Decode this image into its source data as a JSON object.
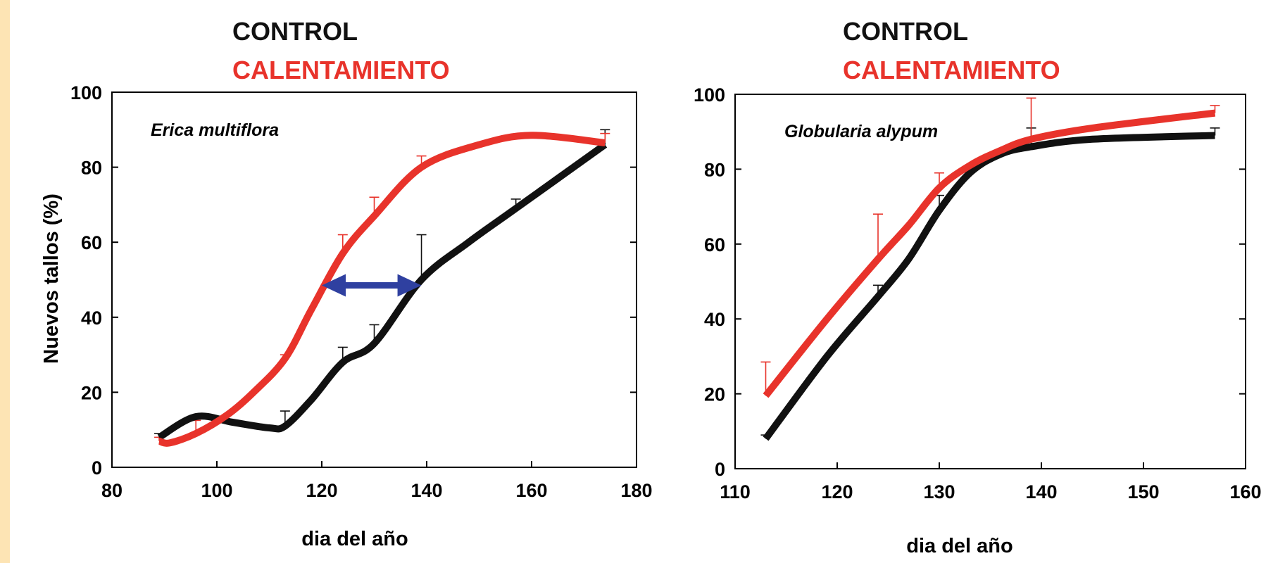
{
  "legend": {
    "control": "CONTROL",
    "warming": "CALENTAMIENTO"
  },
  "colors": {
    "control": "#111111",
    "warming": "#e8332b",
    "arrow": "#2f40a0",
    "background": "#fde4b4"
  },
  "chart_data": [
    {
      "type": "line",
      "species": "Erica multiflora",
      "xlabel": "dia del año",
      "ylabel": "Nuevos tallos (%)",
      "xlim": [
        80,
        180
      ],
      "ylim": [
        0,
        100
      ],
      "xticks": [
        80,
        100,
        120,
        140,
        160,
        180
      ],
      "yticks": [
        0,
        20,
        40,
        60,
        80,
        100
      ],
      "series": [
        {
          "name": "CONTROL",
          "color": "#111111",
          "x": [
            89,
            96,
            103,
            110,
            113,
            118,
            124,
            130,
            139,
            148,
            157,
            174
          ],
          "y": [
            8,
            13.5,
            12,
            10.5,
            11,
            18,
            28,
            33,
            50,
            60,
            69,
            86
          ],
          "error_x": [
            89,
            113,
            124,
            130,
            139,
            157,
            174
          ],
          "error_up": [
            1,
            4,
            4,
            5,
            12,
            2.5,
            4
          ]
        },
        {
          "name": "CALENTAMIENTO",
          "color": "#e8332b",
          "x": [
            89,
            91,
            96,
            102,
            107,
            113,
            118,
            124,
            130,
            139,
            150,
            160,
            174
          ],
          "y": [
            7,
            6.5,
            9,
            14,
            20,
            29,
            42,
            57,
            67,
            80,
            86,
            88.5,
            86.5
          ],
          "error_x": [
            89,
            96,
            113,
            124,
            130,
            139,
            157,
            174
          ],
          "error_up": [
            1,
            3.5,
            1,
            5,
            5,
            3,
            1,
            2.5
          ]
        }
      ],
      "annotation": {
        "type": "double-arrow",
        "from_x": 120,
        "to_x": 139,
        "y": 48.5
      }
    },
    {
      "type": "line",
      "species": "Globularia alypum",
      "xlabel": "dia del año",
      "ylabel": "",
      "xlim": [
        110,
        160
      ],
      "ylim": [
        0,
        100
      ],
      "xticks": [
        110,
        120,
        130,
        140,
        150,
        160
      ],
      "yticks": [
        0,
        20,
        40,
        60,
        80,
        100
      ],
      "series": [
        {
          "name": "CONTROL",
          "color": "#111111",
          "x": [
            113,
            119,
            124,
            127,
            130,
            133,
            136,
            139,
            145,
            157
          ],
          "y": [
            8,
            30,
            46,
            56,
            69,
            79,
            84,
            86,
            88,
            89
          ],
          "error_x": [
            113,
            124,
            130,
            139,
            157
          ],
          "error_up": [
            1,
            3,
            4,
            5,
            2
          ]
        },
        {
          "name": "CALENTAMIENTO",
          "color": "#e8332b",
          "x": [
            113,
            119,
            124,
            127,
            130,
            133,
            136,
            139,
            145,
            157
          ],
          "y": [
            19.5,
            40,
            56,
            65,
            75,
            81,
            85,
            88,
            91,
            95
          ],
          "error_x": [
            113,
            124,
            130,
            139,
            157
          ],
          "error_up": [
            9,
            12,
            4,
            11,
            2
          ]
        }
      ]
    }
  ]
}
